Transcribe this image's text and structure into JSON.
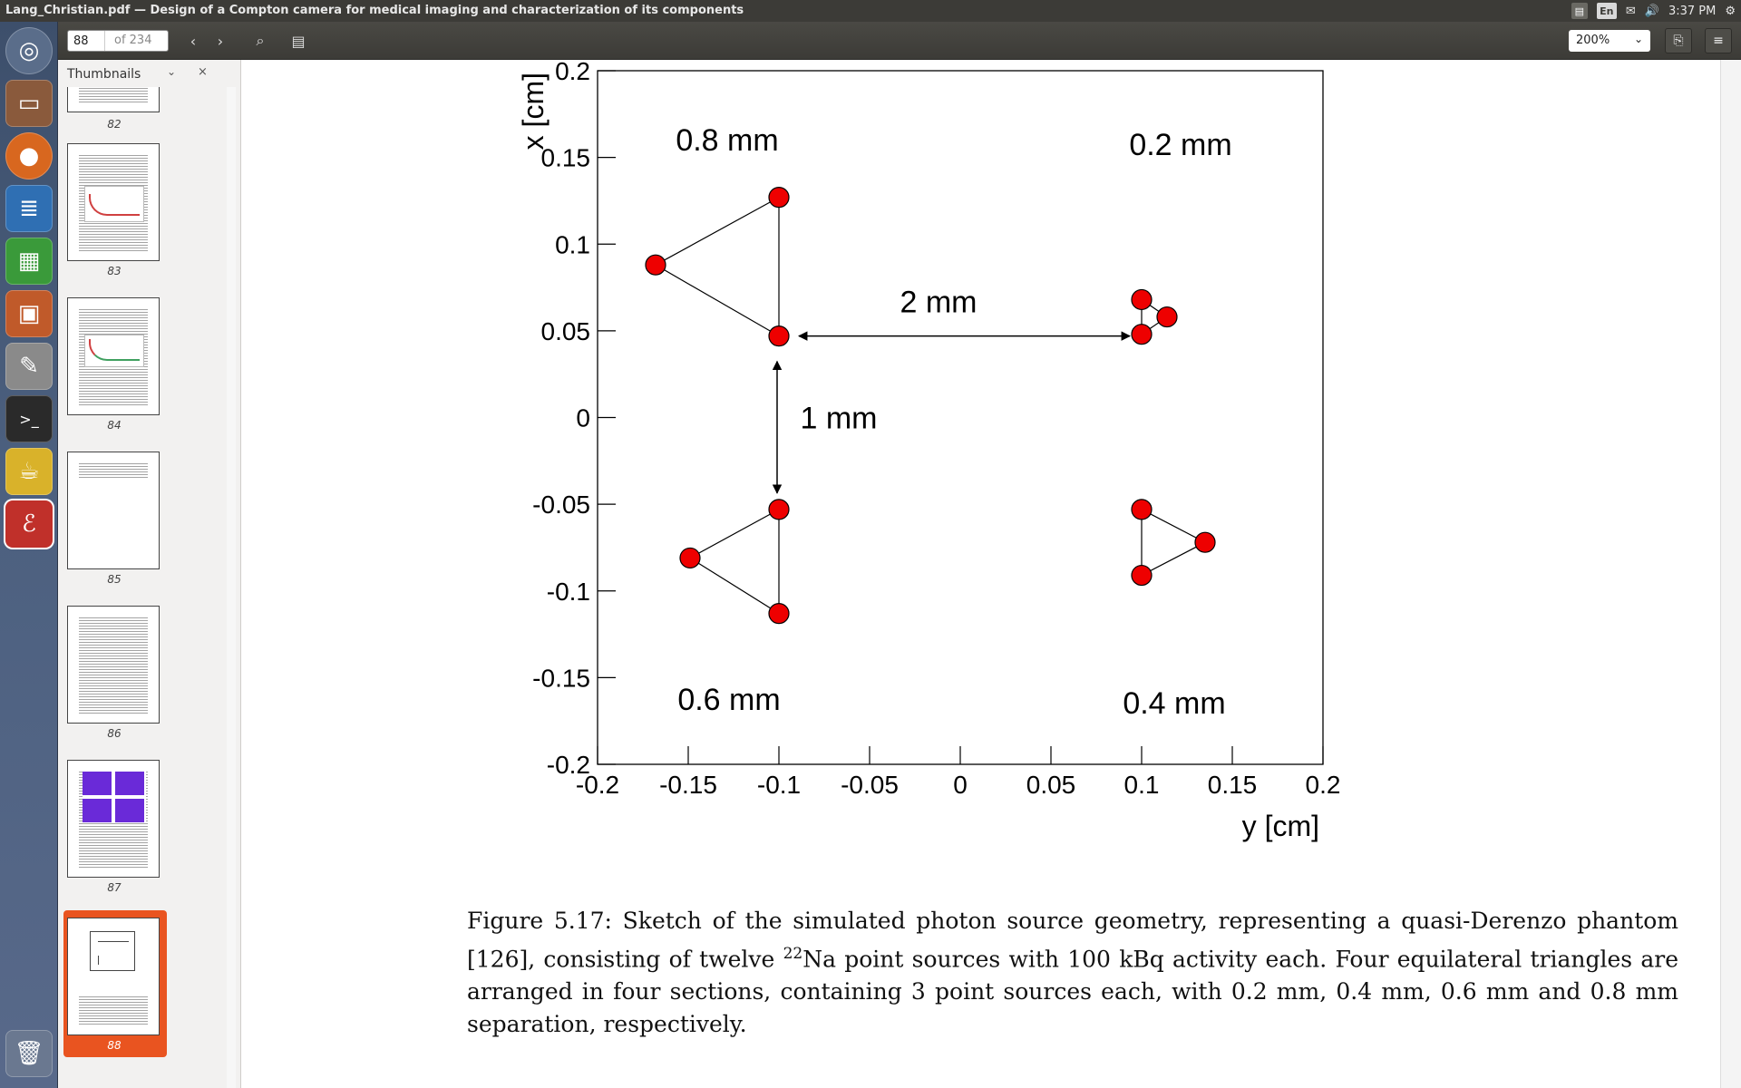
{
  "window": {
    "title": "Lang_Christian.pdf — Design of a Compton camera for medical imaging and characterization of its components",
    "clock": "3:37 PM",
    "lang": "En"
  },
  "toolbar": {
    "page_current": "88",
    "page_total": "of 234",
    "zoom": "200%"
  },
  "sidebar": {
    "title": "Thumbnails",
    "thumbnails": [
      {
        "page": "82"
      },
      {
        "page": "83"
      },
      {
        "page": "84"
      },
      {
        "page": "85"
      },
      {
        "page": "86"
      },
      {
        "page": "87"
      },
      {
        "page": "88",
        "selected": true
      }
    ]
  },
  "launcher": {
    "items": [
      "ubuntu-dash-icon",
      "files-icon",
      "firefox-icon",
      "writer-icon",
      "calc-icon",
      "impress-icon",
      "settings-icon",
      "terminal-icon",
      "teapot-icon",
      "pdf-reader-icon",
      "trash-icon"
    ]
  },
  "chart_data": {
    "type": "scatter",
    "xlabel": "y [cm]",
    "ylabel": "x [cm]",
    "xlim": [
      -0.2,
      0.2
    ],
    "ylim": [
      -0.2,
      0.2
    ],
    "xticks": [
      "-0.2",
      "-0.15",
      "-0.1",
      "-0.05",
      "0",
      "0.05",
      "0.1",
      "0.15",
      "0.2"
    ],
    "yticks": [
      "0.2",
      "0.15",
      "0.1",
      "0.05",
      "0",
      "-0.05",
      "-0.1",
      "-0.15",
      "-0.2"
    ],
    "marker_color": "#ee0000",
    "triangles": [
      {
        "label": "0.8 mm",
        "points": [
          [
            -0.1,
            0.127
          ],
          [
            -0.168,
            0.088
          ],
          [
            -0.1,
            0.047
          ]
        ]
      },
      {
        "label": "0.2 mm",
        "points": [
          [
            0.1,
            0.068
          ],
          [
            0.114,
            0.058
          ],
          [
            0.1,
            0.048
          ]
        ]
      },
      {
        "label": "0.6 mm",
        "points": [
          [
            -0.1,
            -0.053
          ],
          [
            -0.149,
            -0.081
          ],
          [
            -0.1,
            -0.113
          ]
        ]
      },
      {
        "label": "0.4 mm",
        "points": [
          [
            0.1,
            -0.053
          ],
          [
            0.135,
            -0.072
          ],
          [
            0.1,
            -0.091
          ]
        ]
      }
    ],
    "annotations": [
      {
        "text": "2 mm",
        "type": "horizontal-arrow"
      },
      {
        "text": "1 mm",
        "type": "vertical-arrow"
      }
    ]
  },
  "caption": {
    "lead": "Figure 5.17:  Sketch of the simulated photon source geometry, representing a quasi-Derenzo phantom [126], consisting of twelve ",
    "sup": "22",
    "rest": "Na point sources with 100 kBq activity each. Four equilateral triangles are arranged in four sections, containing 3 point sources each, with 0.2 mm, 0.4 mm, 0.6 mm and 0.8 mm separation, respectively."
  }
}
